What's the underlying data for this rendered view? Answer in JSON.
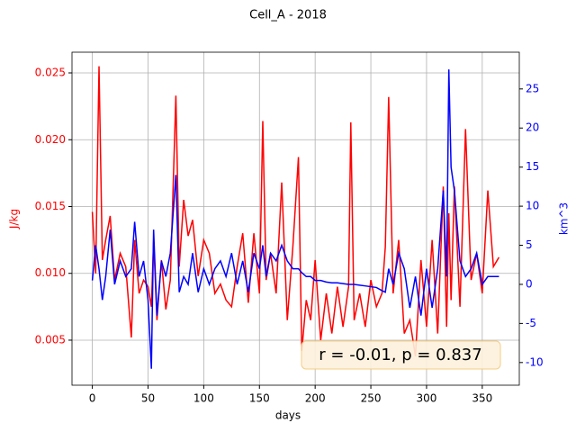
{
  "chart_data": {
    "type": "line",
    "title": "Cell_A - 2018",
    "xlabel": "days",
    "ylabel": "J/kg",
    "y2label": "km^3",
    "annotation": "r = -0.01, p = 0.837",
    "x": [
      0,
      3,
      6,
      9,
      12,
      16,
      20,
      25,
      30,
      35,
      38,
      42,
      46,
      50,
      53,
      55,
      58,
      62,
      66,
      70,
      75,
      78,
      82,
      86,
      90,
      95,
      100,
      105,
      110,
      115,
      120,
      125,
      130,
      135,
      140,
      145,
      150,
      153,
      156,
      160,
      165,
      170,
      175,
      180,
      185,
      188,
      192,
      196,
      200,
      205,
      210,
      215,
      220,
      225,
      230,
      232,
      235,
      240,
      245,
      250,
      255,
      260,
      263,
      266,
      270,
      275,
      280,
      285,
      290,
      295,
      300,
      305,
      310,
      315,
      318,
      320,
      322,
      325,
      330,
      335,
      340,
      345,
      350,
      355,
      360,
      365
    ],
    "series": [
      {
        "name": "J/kg",
        "color": "#ff0000",
        "axis": "y",
        "values": [
          0.0146,
          0.01,
          0.0255,
          0.011,
          0.0125,
          0.0143,
          0.0095,
          0.0115,
          0.0105,
          0.0052,
          0.0125,
          0.0085,
          0.0095,
          0.009,
          0.0075,
          0.0125,
          0.0065,
          0.011,
          0.0073,
          0.0095,
          0.0233,
          0.0105,
          0.0155,
          0.0128,
          0.014,
          0.0098,
          0.0125,
          0.0115,
          0.0085,
          0.0092,
          0.008,
          0.0075,
          0.0105,
          0.013,
          0.0078,
          0.013,
          0.0085,
          0.0214,
          0.0095,
          0.0115,
          0.0085,
          0.0168,
          0.0065,
          0.012,
          0.0187,
          0.0042,
          0.008,
          0.0065,
          0.011,
          0.005,
          0.0085,
          0.0055,
          0.009,
          0.006,
          0.009,
          0.0213,
          0.0065,
          0.0085,
          0.006,
          0.0095,
          0.0075,
          0.0085,
          0.012,
          0.0232,
          0.0085,
          0.0125,
          0.0055,
          0.0065,
          0.0038,
          0.011,
          0.006,
          0.0125,
          0.0055,
          0.0165,
          0.006,
          0.0145,
          0.008,
          0.0165,
          0.0075,
          0.0208,
          0.0095,
          0.0115,
          0.0085,
          0.0162,
          0.0105,
          0.0112
        ]
      },
      {
        "name": "km^3",
        "color": "#0000ff",
        "axis": "y2",
        "values": [
          0.5,
          5,
          2,
          -2,
          1,
          7,
          0,
          3,
          1,
          2,
          8,
          1,
          3,
          -2,
          -10.8,
          7,
          -4,
          3,
          1,
          4,
          14,
          -1,
          1,
          0,
          4,
          -1,
          2,
          0,
          2,
          3,
          1,
          4,
          0,
          3,
          -1,
          4,
          2,
          5,
          1,
          4,
          3,
          5,
          3,
          2,
          2,
          1.5,
          1,
          1,
          0.5,
          0.5,
          0.3,
          0.2,
          0.2,
          0.1,
          0,
          0,
          0,
          -0.1,
          -0.2,
          -0.3,
          -0.4,
          -0.8,
          -1,
          2,
          0,
          4,
          2,
          -3,
          1,
          -4,
          2,
          -3,
          2,
          12,
          1,
          27.5,
          15,
          12,
          3,
          1,
          2,
          4,
          0,
          1,
          1,
          1
        ]
      }
    ],
    "xlim": [
      -18.25,
      383.25
    ],
    "xticks": [
      0,
      50,
      100,
      150,
      200,
      250,
      300,
      350
    ],
    "ylim": [
      0.00163,
      0.02655
    ],
    "yticks": [
      0.005,
      {
        "value": 0.01,
        "label": "0.010"
      },
      0.015,
      {
        "value": 0.02,
        "label": "0.020"
      },
      0.025
    ],
    "y2lim": [
      -12.9,
      29.7
    ],
    "y2ticks": [
      -10,
      -5,
      0,
      5,
      10,
      15,
      20,
      25
    ],
    "grid": true
  }
}
